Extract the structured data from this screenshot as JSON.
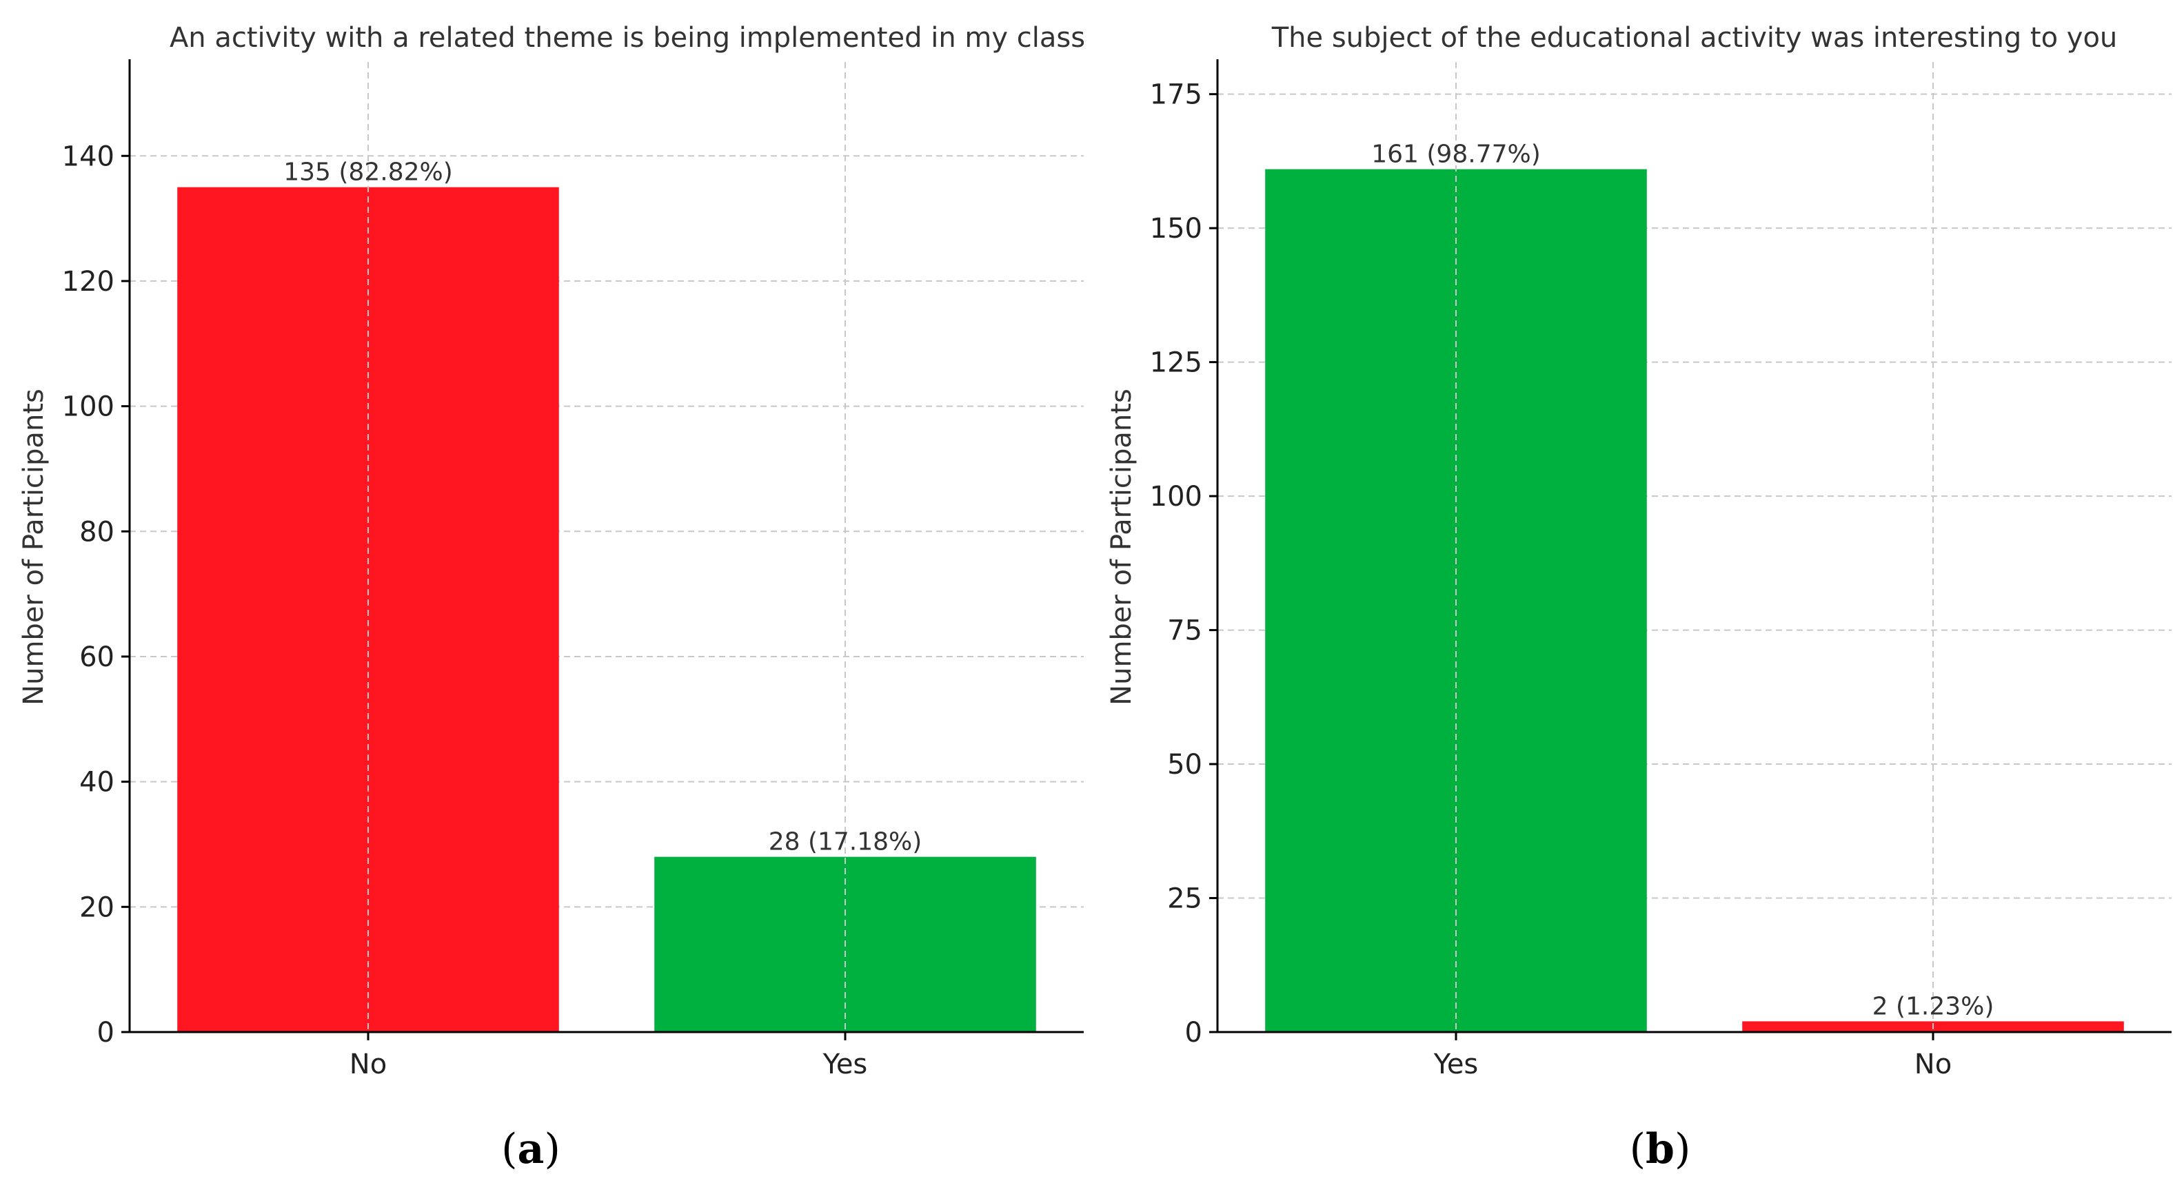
{
  "chart_data": [
    {
      "type": "bar",
      "panel_label": "a",
      "title": "An activity with a related theme is being implemented in my class",
      "xlabel": "",
      "ylabel": "Number of Participants",
      "categories": [
        "No",
        "Yes"
      ],
      "values": [
        135,
        28
      ],
      "data_labels": [
        "135 (82.82%)",
        "28 (17.18%)"
      ],
      "colors": [
        "#ff1620",
        "#00b140"
      ],
      "ylim": [
        0,
        155
      ],
      "yticks": [
        0,
        20,
        40,
        60,
        80,
        100,
        120,
        140
      ],
      "grid": true,
      "legend": "none"
    },
    {
      "type": "bar",
      "panel_label": "b",
      "title": "The subject of the educational activity was interesting to you",
      "xlabel": "",
      "ylabel": "Number of Participants",
      "categories": [
        "Yes",
        "No"
      ],
      "values": [
        161,
        2
      ],
      "data_labels": [
        "161 (98.77%)",
        "2 (1.23%)"
      ],
      "colors": [
        "#00b140",
        "#ff1620"
      ],
      "ylim": [
        0,
        181
      ],
      "yticks": [
        0,
        25,
        50,
        75,
        100,
        125,
        150,
        175
      ],
      "grid": true,
      "legend": "none"
    }
  ]
}
